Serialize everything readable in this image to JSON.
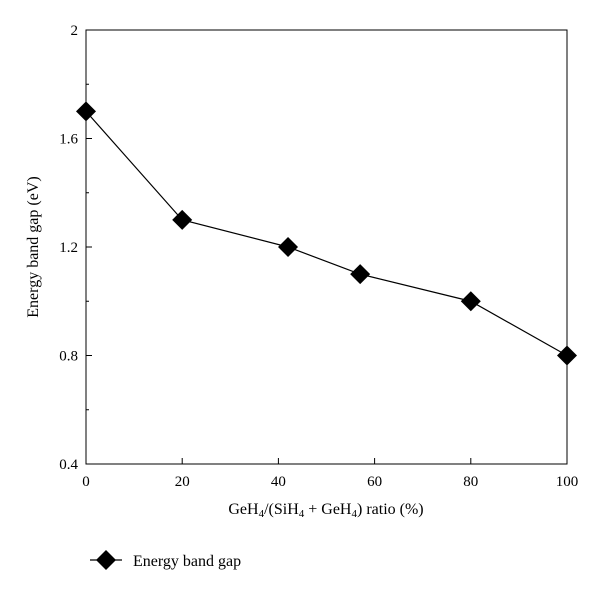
{
  "chart_data": {
    "type": "line",
    "title": "",
    "xlabel": "GeH4/(SiH4 + GeH4) ratio (%)",
    "xlabel_parts": [
      {
        "text": "GeH",
        "sub": false
      },
      {
        "text": "4",
        "sub": true
      },
      {
        "text": "/(SiH",
        "sub": false
      },
      {
        "text": "4",
        "sub": true
      },
      {
        "text": " + GeH",
        "sub": false
      },
      {
        "text": "4",
        "sub": true
      },
      {
        "text": ") ratio (%)",
        "sub": false
      }
    ],
    "ylabel": "Energy band gap (eV)",
    "xlim": [
      0,
      100
    ],
    "ylim": [
      0.4,
      2
    ],
    "x_ticks": [
      0,
      20,
      40,
      60,
      80,
      100
    ],
    "x_tick_labels": [
      "0",
      "20",
      "40",
      "60",
      "80",
      "100"
    ],
    "y_ticks": [
      0.4,
      0.8,
      1.2,
      1.6,
      2
    ],
    "y_tick_labels": [
      "0.4",
      "0.8",
      "1.2",
      "1.6",
      "2"
    ],
    "y_minor_ticks": [
      0.6,
      1.0,
      1.4,
      1.8
    ],
    "grid": false,
    "legend_position": "bottom-left",
    "series": [
      {
        "name": "Energy band gap",
        "marker": "diamond",
        "color": "#000000",
        "x": [
          0,
          20,
          42,
          57,
          80,
          100
        ],
        "y": [
          1.7,
          1.3,
          1.2,
          1.1,
          1.0,
          0.8
        ]
      }
    ]
  }
}
